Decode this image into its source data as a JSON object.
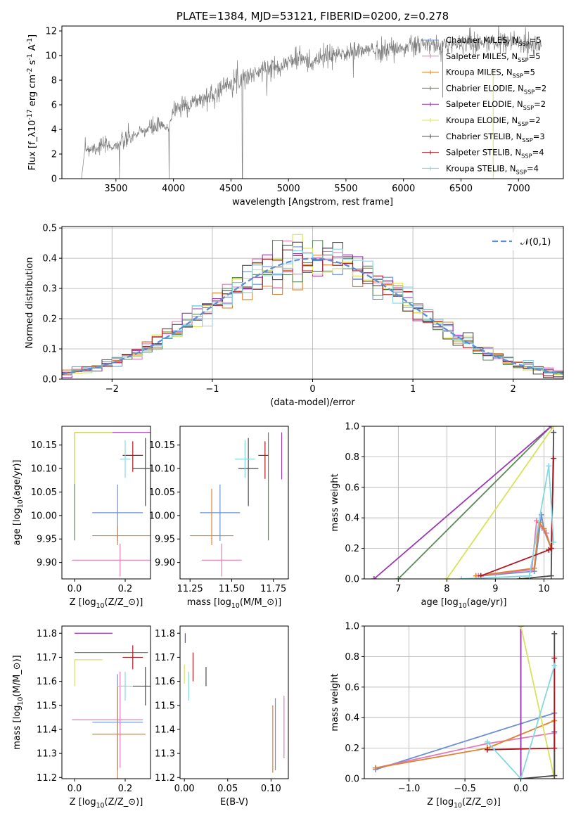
{
  "colors": {
    "Chabrier MILES": "#6b8fd6",
    "Salpeter MILES": "#e37ab8",
    "Kroupa MILES": "#e0812f",
    "Chabrier ELODIE": "#5d8a5a",
    "Salpeter ELODIE": "#9d37b4",
    "Kroupa ELODIE": "#d8e25a",
    "Chabrier STELIB": "#4a4a4a",
    "Salpeter STELIB": "#b0171f",
    "Kroupa STELIB": "#86d8e0",
    "gauss": "#5b8ed6",
    "spectrum": "#7f7f7f"
  },
  "legend_entries": [
    "Chabrier MILES, N$_{SSP}$=5",
    "Salpeter MILES, N$_{SSP}$=5",
    "Kroupa MILES, N$_{SSP}$=5",
    "Chabrier ELODIE, N$_{SSP}$=2",
    "Salpeter ELODIE, N$_{SSP}$=2",
    "Kroupa ELODIE, N$_{SSP}$=2",
    "Chabrier STELIB, N$_{SSP}$=3",
    "Salpeter STELIB, N$_{SSP}$=4",
    "Kroupa STELIB, N$_{SSP}$=4"
  ],
  "chart_data": [
    {
      "type": "line",
      "title": "PLATE=1384, MJD=53121, FIBERID=0200, z=0.278",
      "xlabel": "wavelength [Angstrom, rest frame]",
      "ylabel": "Flux [f$_\\lambda$10$^{-17}$ erg cm$^{-2}$ s$^{-1}$ A$^{-1}$]",
      "xlim": [
        3030,
        7390
      ],
      "ylim": [
        0,
        12.4
      ],
      "xticks": [
        3500,
        4000,
        4500,
        5000,
        5500,
        6000,
        6500,
        7000
      ],
      "yticks": [
        0,
        2,
        4,
        6,
        8,
        10,
        12
      ],
      "continuum_x": [
        3200,
        3230,
        3300,
        3400,
        3480,
        3520,
        3600,
        3700,
        3800,
        3900,
        3950,
        4000,
        4100,
        4200,
        4300,
        4400,
        4500,
        4600,
        4700,
        4800,
        4900,
        5000,
        5100,
        5200,
        5300,
        5400,
        5500,
        5600,
        5700,
        5800,
        5900,
        6000,
        6100,
        6200,
        6300,
        6400,
        6500,
        6600,
        6700,
        6800,
        6900,
        7000,
        7100,
        7200
      ],
      "continuum_y": [
        0.0,
        2.4,
        2.5,
        2.7,
        2.6,
        2.8,
        3.2,
        3.7,
        4.1,
        4.3,
        4.0,
        5.6,
        6.0,
        6.3,
        6.6,
        7.2,
        7.9,
        8.2,
        8.5,
        8.9,
        9.1,
        9.5,
        9.8,
        9.4,
        9.9,
        10.0,
        10.2,
        10.3,
        10.5,
        10.4,
        10.6,
        10.6,
        10.8,
        10.9,
        10.7,
        10.9,
        11.0,
        11.1,
        11.0,
        11.1,
        11.2,
        11.1,
        11.0,
        10.9
      ],
      "legend": "upper right"
    },
    {
      "type": "line",
      "xlabel": "(data-model)/error",
      "ylabel": "Normed distribution",
      "xlim": [
        -2.5,
        2.5
      ],
      "ylim": [
        0,
        0.505
      ],
      "xticks": [
        -2,
        -1,
        0,
        1,
        2
      ],
      "yticks": [
        0.0,
        0.1,
        0.2,
        0.3,
        0.4,
        0.5
      ],
      "grid": true,
      "gauss_label": "$\\mathcal{N}(0,1)$",
      "histogram_bin_width": 0.1,
      "legend": "upper right"
    },
    {
      "type": "scatter",
      "xlabel": "Z [log$_{10}$(Z/Z$_\\odot$)]",
      "ylabel": "age  [log$_{10}$(age/yr)]",
      "xlim": [
        -0.05,
        0.3
      ],
      "ylim": [
        9.865,
        10.19
      ],
      "xticks": [
        0.0,
        0.2
      ],
      "yticks": [
        9.9,
        9.95,
        10.0,
        10.05,
        10.1,
        10.15
      ],
      "points": [
        {
          "model": "Chabrier MILES",
          "x": 0.17,
          "xerr": [
            0.1,
            0.1
          ],
          "y": 10.006,
          "yerr": [
            0.06,
            0.06
          ]
        },
        {
          "model": "Salpeter MILES",
          "x": 0.18,
          "xerr": [
            0.19,
            0.19
          ],
          "y": 9.905,
          "yerr": [
            0.035,
            0.035
          ]
        },
        {
          "model": "Kroupa MILES",
          "x": 0.17,
          "xerr": [
            0.1,
            0.15
          ],
          "y": 9.957,
          "yerr": [
            0.02,
            0.02
          ]
        },
        {
          "model": "Chabrier ELODIE",
          "x": 0.0,
          "xerr": [
            0.0,
            0.0
          ],
          "y": 10.177,
          "yerr": [
            0.23,
            0.0
          ]
        },
        {
          "model": "Salpeter ELODIE",
          "x": 0.15,
          "xerr": [
            0.15,
            0.15
          ],
          "y": 10.177,
          "yerr": [
            0.0,
            0.0
          ]
        },
        {
          "model": "Kroupa ELODIE",
          "x": 0.0,
          "xerr": [
            0.0,
            0.15
          ],
          "y": 10.177,
          "yerr": [
            0.11,
            0.0
          ]
        },
        {
          "model": "Chabrier STELIB",
          "x": 0.28,
          "xerr": [
            0.05,
            0.02
          ],
          "y": 10.1,
          "yerr": [
            0.08,
            0.065
          ]
        },
        {
          "model": "Salpeter STELIB",
          "x": 0.23,
          "xerr": [
            0.04,
            0.04
          ],
          "y": 10.128,
          "yerr": [
            0.035,
            0.03
          ]
        },
        {
          "model": "Kroupa STELIB",
          "x": 0.2,
          "xerr": [
            0.02,
            0.02
          ],
          "y": 10.12,
          "yerr": [
            0.04,
            0.04
          ]
        }
      ]
    },
    {
      "type": "scatter",
      "xlabel": "mass [log$_{10}$(M/M$_\\odot$)]",
      "xlim": [
        11.19,
        11.84
      ],
      "ylim": [
        9.865,
        10.19
      ],
      "xticks": [
        11.25,
        11.5,
        11.75
      ],
      "yticks": [
        9.9,
        9.95,
        10.0,
        10.05,
        10.1,
        10.15
      ],
      "points": [
        {
          "model": "Chabrier MILES",
          "x": 11.43,
          "xerr": [
            0.12,
            0.12
          ],
          "y": 10.006,
          "yerr": [
            0.06,
            0.06
          ]
        },
        {
          "model": "Salpeter MILES",
          "x": 11.44,
          "xerr": [
            0.12,
            0.12
          ],
          "y": 9.905,
          "yerr": [
            0.035,
            0.035
          ]
        },
        {
          "model": "Kroupa MILES",
          "x": 11.38,
          "xerr": [
            0.13,
            0.13
          ],
          "y": 9.957,
          "yerr": [
            0.02,
            0.1
          ]
        },
        {
          "model": "Chabrier ELODIE",
          "x": 11.72,
          "xerr": [
            0.0,
            0.0
          ],
          "y": 10.177,
          "yerr": [
            0.23,
            0.0
          ]
        },
        {
          "model": "Salpeter ELODIE",
          "x": 11.8,
          "xerr": [
            0.0,
            0.0
          ],
          "y": 10.177,
          "yerr": [
            0.1,
            0.0
          ]
        },
        {
          "model": "Kroupa ELODIE",
          "x": 11.69,
          "xerr": [
            0.0,
            0.0
          ],
          "y": 10.177,
          "yerr": [
            0.0,
            0.0
          ]
        },
        {
          "model": "Chabrier STELIB",
          "x": 11.6,
          "xerr": [
            0.06,
            0.06
          ],
          "y": 10.1,
          "yerr": [
            0.08,
            0.065
          ]
        },
        {
          "model": "Salpeter STELIB",
          "x": 11.7,
          "xerr": [
            0.04,
            0.02
          ],
          "y": 10.128,
          "yerr": [
            0.05,
            0.03
          ]
        },
        {
          "model": "Kroupa STELIB",
          "x": 11.58,
          "xerr": [
            0.06,
            0.06
          ],
          "y": 10.12,
          "yerr": [
            0.04,
            0.04
          ]
        }
      ]
    },
    {
      "type": "line",
      "xlabel": "age  [log$_{10}$(age/yr)]",
      "ylabel": "mass weight",
      "xlim": [
        6.3,
        10.4
      ],
      "ylim": [
        0.0,
        1.0
      ],
      "xticks": [
        7,
        8,
        9,
        10
      ],
      "yticks": [
        0.0,
        0.2,
        0.4,
        0.6,
        0.8,
        1.0
      ],
      "grid": true,
      "series": [
        {
          "model": "Chabrier MILES",
          "x": [
            8.7,
            9.8,
            9.95,
            10.0,
            10.15
          ],
          "y": [
            0.02,
            0.05,
            0.42,
            0.32,
            0.2
          ]
        },
        {
          "model": "Salpeter MILES",
          "x": [
            8.65,
            9.75,
            9.85,
            10.05,
            10.15
          ],
          "y": [
            0.02,
            0.06,
            0.38,
            0.3,
            0.2
          ]
        },
        {
          "model": "Kroupa MILES",
          "x": [
            8.6,
            9.8,
            9.9,
            10.0,
            10.15
          ],
          "y": [
            0.02,
            0.07,
            0.37,
            0.33,
            0.2
          ]
        },
        {
          "model": "Chabrier ELODIE",
          "x": [
            7.0,
            10.15
          ],
          "y": [
            0.0,
            1.0
          ]
        },
        {
          "model": "Salpeter ELODIE",
          "x": [
            6.5,
            10.15
          ],
          "y": [
            0.0,
            1.0
          ]
        },
        {
          "model": "Kroupa ELODIE",
          "x": [
            8.0,
            10.2
          ],
          "y": [
            0.0,
            1.0
          ]
        },
        {
          "model": "Chabrier STELIB",
          "x": [
            9.5,
            10.15,
            10.2
          ],
          "y": [
            0.0,
            0.02,
            0.96
          ]
        },
        {
          "model": "Salpeter STELIB",
          "x": [
            8.7,
            10.1,
            10.15,
            10.2
          ],
          "y": [
            0.02,
            0.19,
            0.2,
            0.79
          ]
        },
        {
          "model": "Kroupa STELIB",
          "x": [
            8.3,
            9.7,
            10.1,
            10.2
          ],
          "y": [
            0.0,
            0.02,
            0.74,
            0.24
          ]
        }
      ]
    },
    {
      "type": "scatter",
      "xlabel": "Z [log$_{10}$(Z/Z$_\\odot$)]",
      "ylabel": "mass [log$_{10}$(M/M$_\\odot$)]",
      "xlim": [
        -0.05,
        0.3
      ],
      "ylim": [
        11.195,
        11.83
      ],
      "xticks": [
        0.0,
        0.2
      ],
      "yticks": [
        11.2,
        11.3,
        11.4,
        11.5,
        11.6,
        11.7,
        11.8
      ],
      "points": [
        {
          "model": "Chabrier MILES",
          "x": 0.17,
          "xerr": [
            0.1,
            0.1
          ],
          "y": 11.43,
          "yerr": [
            0.2,
            0.2
          ]
        },
        {
          "model": "Salpeter MILES",
          "x": 0.18,
          "xerr": [
            0.19,
            0.09
          ],
          "y": 11.44,
          "yerr": [
            0.2,
            0.2
          ]
        },
        {
          "model": "Kroupa MILES",
          "x": 0.17,
          "xerr": [
            0.1,
            0.11
          ],
          "y": 11.38,
          "yerr": [
            0.2,
            0.2
          ]
        },
        {
          "model": "Chabrier ELODIE",
          "x": 0.0,
          "xerr": [
            0.0,
            0.29
          ],
          "y": 11.72,
          "yerr": [
            0.0,
            0.0
          ]
        },
        {
          "model": "Salpeter ELODIE",
          "x": 0.0,
          "xerr": [
            0.0,
            0.15
          ],
          "y": 11.8,
          "yerr": [
            0.0,
            0.0
          ]
        },
        {
          "model": "Kroupa ELODIE",
          "x": 0.0,
          "xerr": [
            0.0,
            0.11
          ],
          "y": 11.69,
          "yerr": [
            0.11,
            0.0
          ]
        },
        {
          "model": "Chabrier STELIB",
          "x": 0.28,
          "xerr": [
            0.05,
            0.02
          ],
          "y": 11.58,
          "yerr": [
            0.08,
            0.08
          ]
        },
        {
          "model": "Salpeter STELIB",
          "x": 0.23,
          "xerr": [
            0.04,
            0.04
          ],
          "y": 11.7,
          "yerr": [
            0.05,
            0.05
          ]
        },
        {
          "model": "Kroupa STELIB",
          "x": 0.2,
          "xerr": [
            0.03,
            0.03
          ],
          "y": 11.58,
          "yerr": [
            0.06,
            0.06
          ]
        }
      ]
    },
    {
      "type": "scatter",
      "xlabel": "E(B-V)",
      "xlim": [
        -0.005,
        0.12
      ],
      "ylim": [
        11.195,
        11.83
      ],
      "xticks": [
        0.0,
        0.05,
        0.1
      ],
      "yticks": [
        11.2,
        11.3,
        11.4,
        11.5,
        11.6,
        11.7,
        11.8
      ],
      "points": [
        {
          "model": "Chabrier MILES",
          "x": 0.105,
          "xerr": [
            0.0,
            0.0
          ],
          "y": 11.43,
          "yerr": [
            0.2,
            0.1
          ]
        },
        {
          "model": "Salpeter MILES",
          "x": 0.115,
          "xerr": [
            0.0,
            0.0
          ],
          "y": 11.44,
          "yerr": [
            0.16,
            0.1
          ]
        },
        {
          "model": "Kroupa MILES",
          "x": 0.102,
          "xerr": [
            0.0,
            0.0
          ],
          "y": 11.38,
          "yerr": [
            0.16,
            0.12
          ]
        },
        {
          "model": "Chabrier ELODIE",
          "x": 0.001,
          "xerr": [
            0.0,
            0.0
          ],
          "y": 11.72,
          "yerr": [
            0.0,
            0.0
          ]
        },
        {
          "model": "Salpeter ELODIE",
          "x": 0.001,
          "xerr": [
            0.0,
            0.0
          ],
          "y": 11.8,
          "yerr": [
            0.04,
            0.0
          ]
        },
        {
          "model": "Kroupa ELODIE",
          "x": 0.0,
          "xerr": [
            0.0,
            0.0
          ],
          "y": 11.67,
          "yerr": [
            0.08,
            0.0
          ]
        },
        {
          "model": "Chabrier STELIB",
          "x": 0.025,
          "xerr": [
            0.0,
            0.0
          ],
          "y": 11.58,
          "yerr": [
            0.0,
            0.08
          ]
        },
        {
          "model": "Salpeter STELIB",
          "x": 0.01,
          "xerr": [
            0.0,
            0.0
          ],
          "y": 11.65,
          "yerr": [
            0.05,
            0.07
          ]
        },
        {
          "model": "Kroupa STELIB",
          "x": 0.005,
          "xerr": [
            0.0,
            0.0
          ],
          "y": 11.58,
          "yerr": [
            0.06,
            0.06
          ]
        }
      ]
    },
    {
      "type": "line",
      "xlabel": "Z [log$_{10}$(Z/Z$_\\odot$)]",
      "ylabel": "mass weight",
      "xlim": [
        -1.4,
        0.38
      ],
      "ylim": [
        0.0,
        1.0
      ],
      "xticks": [
        -1.0,
        -0.5,
        0.0
      ],
      "yticks": [
        0.0,
        0.2,
        0.4,
        0.6,
        0.8,
        1.0
      ],
      "grid": true,
      "series": [
        {
          "model": "Chabrier MILES",
          "x": [
            -1.3,
            0.3,
            0.3,
            0.3
          ],
          "y": [
            0.06,
            0.43,
            0.31,
            0.02
          ]
        },
        {
          "model": "Salpeter MILES",
          "x": [
            -1.3,
            -0.3,
            0.3,
            0.3
          ],
          "y": [
            0.07,
            0.23,
            0.3,
            0.0
          ]
        },
        {
          "model": "Kroupa MILES",
          "x": [
            -1.3,
            -0.3,
            0.3,
            0.3
          ],
          "y": [
            0.07,
            0.2,
            0.38,
            0.02
          ]
        },
        {
          "model": "Chabrier ELODIE",
          "x": [
            0.0,
            0.0
          ],
          "y": [
            1.0,
            0.0
          ]
        },
        {
          "model": "Salpeter ELODIE",
          "x": [
            0.0,
            0.0
          ],
          "y": [
            1.0,
            0.0
          ]
        },
        {
          "model": "Kroupa ELODIE",
          "x": [
            0.0,
            0.3
          ],
          "y": [
            1.0,
            0.0
          ]
        },
        {
          "model": "Chabrier STELIB",
          "x": [
            0.0,
            0.3,
            0.3
          ],
          "y": [
            0.0,
            0.02,
            0.95
          ]
        },
        {
          "model": "Salpeter STELIB",
          "x": [
            -0.3,
            0.3,
            0.3
          ],
          "y": [
            0.19,
            0.2,
            0.79
          ]
        },
        {
          "model": "Kroupa STELIB",
          "x": [
            -0.3,
            0.0,
            0.3
          ],
          "y": [
            0.24,
            0.0,
            0.74
          ]
        }
      ]
    }
  ]
}
